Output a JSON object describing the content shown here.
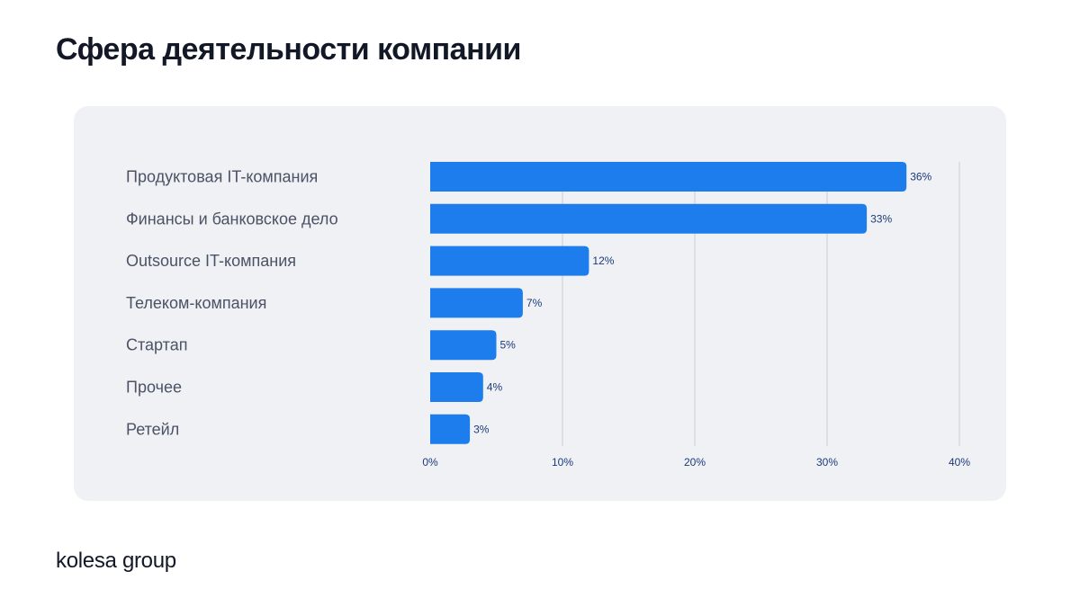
{
  "title": "Сфера деятельности компании",
  "brand": "kolesa group",
  "colors": {
    "bar": "#1d7ded",
    "grid": "#c9cdd6",
    "category_text": "#4a5264",
    "value_text": "#1a3a7a",
    "axis_text": "#1a3a7a",
    "card_bg": "#f0f1f5"
  },
  "chart_data": {
    "type": "bar",
    "orientation": "horizontal",
    "categories": [
      "Продуктовая IT-компания",
      "Финансы и банковское дело",
      "Outsource IT-компания",
      "Телеком-компания",
      "Стартап",
      "Прочее",
      "Ретейл"
    ],
    "values": [
      36,
      33,
      12,
      7,
      5,
      4,
      3
    ],
    "value_labels": [
      "36%",
      "33%",
      "12%",
      "7%",
      "5%",
      "4%",
      "3%"
    ],
    "x_ticks": [
      0,
      10,
      20,
      30,
      40
    ],
    "x_tick_labels": [
      "0%",
      "10%",
      "20%",
      "30%",
      "40%"
    ],
    "xlim": [
      0,
      40
    ],
    "grid": true
  }
}
